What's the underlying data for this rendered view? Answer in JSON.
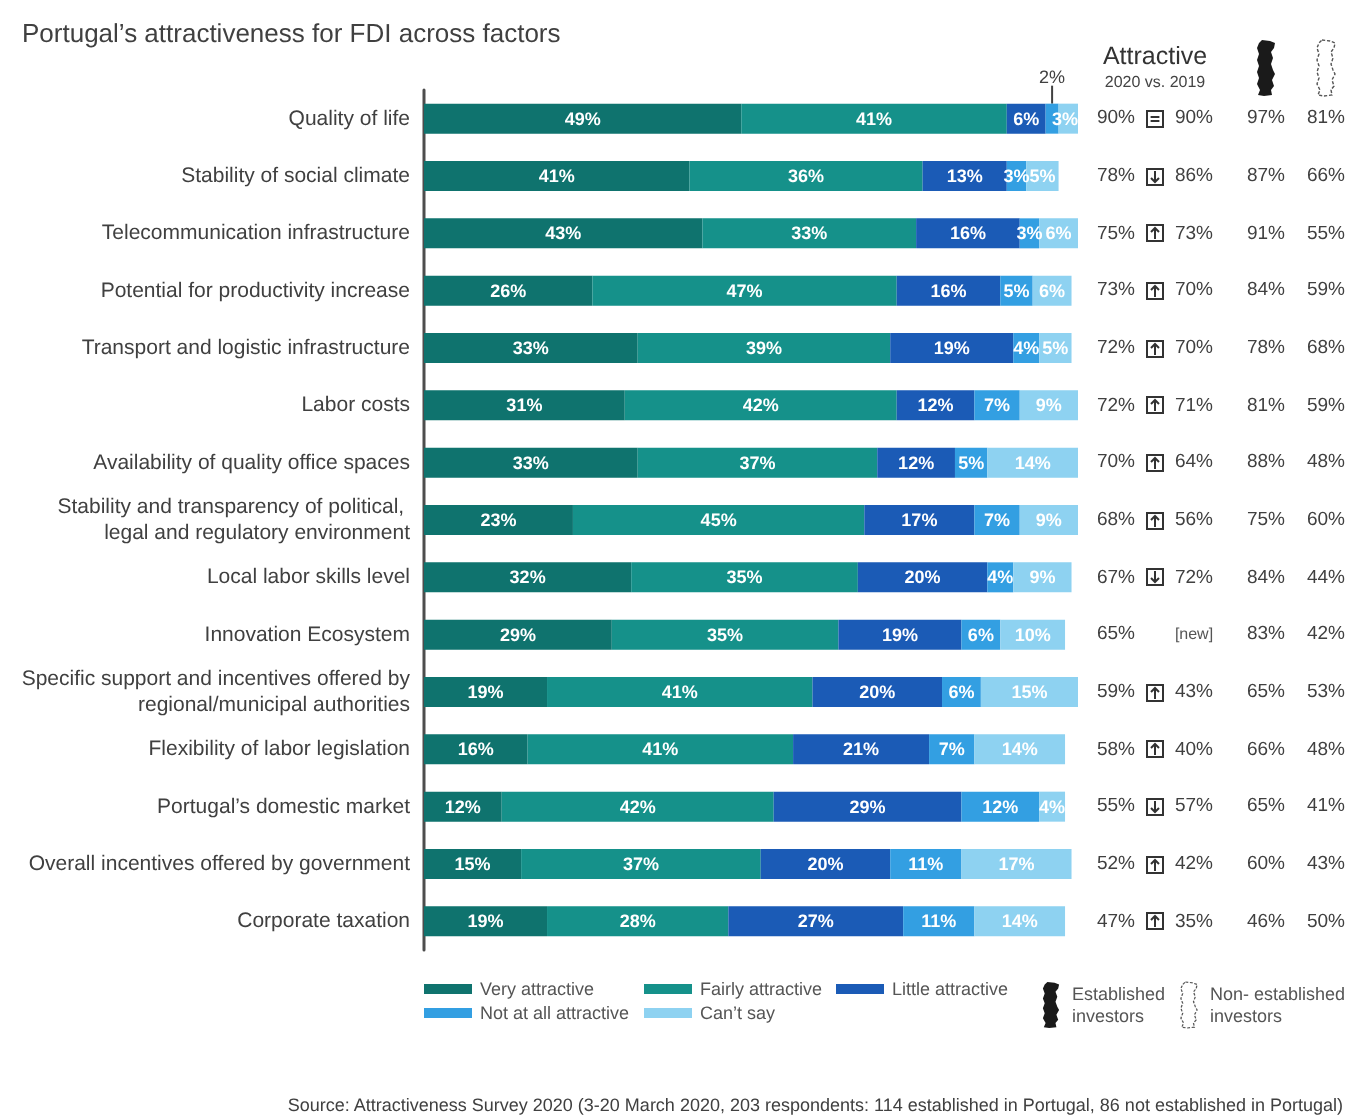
{
  "chart_data": [
    {
      "type": "bar",
      "orientation": "horizontal",
      "stacked": true,
      "title": "Portugal’s attractiveness for FDI across factors",
      "categories": [
        "Quality of life",
        "Stability of social climate",
        "Telecommunication infrastructure",
        "Potential for productivity increase",
        "Transport and logistic infrastructure",
        "Labor costs",
        "Availability of quality office spaces",
        "Stability and transparency of political, legal and regulatory environment",
        "Local labor skills level",
        "Innovation Ecosystem",
        "Specific support and incentives offered by regional/municipal authorities",
        "Flexibility of labor legislation",
        "Portugal’s domestic market",
        "Overall incentives offered by government",
        "Corporate taxation"
      ],
      "series": [
        {
          "name": "Very attractive",
          "color": "#0f736e",
          "values": [
            49,
            41,
            43,
            26,
            33,
            31,
            33,
            23,
            32,
            29,
            19,
            16,
            12,
            15,
            19
          ],
          "value_labels": [
            "49%",
            "41%",
            "43%",
            "26%",
            "33%",
            "31%",
            "33%",
            "23%",
            "32%",
            "29%",
            "19%",
            "16%",
            "12%",
            "15%",
            "19%"
          ]
        },
        {
          "name": "Fairly attractive",
          "color": "#15918a",
          "values": [
            41,
            36,
            33,
            47,
            39,
            42,
            37,
            45,
            35,
            35,
            41,
            41,
            42,
            37,
            28
          ],
          "value_labels": [
            "41%",
            "36%",
            "33%",
            "47%",
            "39%",
            "42%",
            "37%",
            "45%",
            "35%",
            "35%",
            "41%",
            "41%",
            "42%",
            "37%",
            "28%"
          ]
        },
        {
          "name": "Little attractive",
          "color": "#1b5bb6",
          "values": [
            6,
            13,
            16,
            16,
            19,
            12,
            12,
            17,
            20,
            19,
            20,
            21,
            29,
            20,
            27
          ],
          "value_labels": [
            "6%",
            "13%",
            "16%",
            "16%",
            "19%",
            "12%",
            "12%",
            "17%",
            "20%",
            "19%",
            "20%",
            "21%",
            "29%",
            "20%",
            "27%"
          ]
        },
        {
          "name": "Not at all attractive",
          "color": "#339fe2",
          "values": [
            2,
            3,
            3,
            5,
            4,
            7,
            5,
            7,
            4,
            6,
            6,
            7,
            12,
            11,
            11
          ],
          "value_labels": [
            "2%",
            "3%",
            "3%",
            "5%",
            "4%",
            "7%",
            "5%",
            "7%",
            "4%",
            "6%",
            "6%",
            "7%",
            "12%",
            "11%",
            "11%"
          ]
        },
        {
          "name": "Can’t say",
          "color": "#8ed2f1",
          "values": [
            3,
            5,
            6,
            6,
            5,
            9,
            14,
            9,
            9,
            10,
            15,
            14,
            4,
            17,
            14
          ],
          "value_labels": [
            "3%",
            "5%",
            "6%",
            "6%",
            "5%",
            "9%",
            "14%",
            "9%",
            "9%",
            "10%",
            "15%",
            "14%",
            "4%",
            "17%",
            "14%"
          ]
        }
      ],
      "legend": "bottom",
      "annotations": [
        "Source: Attractiveness Survey 2020 (3-20 March 2020, 203 respondents: 114 established in Portugal, 86 not established in Portugal)"
      ]
    },
    {
      "type": "other",
      "title": "Attractive",
      "subtitle": "2020 vs. 2019",
      "annotations": [
        "90%",
        "90%",
        "97%",
        "81%",
        "78%",
        "86%",
        "87%",
        "66%",
        "75%",
        "73%",
        "91%",
        "55%",
        "73%",
        "70%",
        "84%",
        "59%",
        "72%",
        "70%",
        "78%",
        "68%",
        "72%",
        "71%",
        "81%",
        "59%",
        "70%",
        "64%",
        "88%",
        "48%",
        "68%",
        "56%",
        "75%",
        "60%",
        "67%",
        "72%",
        "84%",
        "44%",
        "65%",
        "[new]",
        "83%",
        "42%",
        "59%",
        "43%",
        "65%",
        "53%",
        "58%",
        "40%",
        "66%",
        "48%",
        "55%",
        "57%",
        "65%",
        "41%",
        "52%",
        "42%",
        "60%",
        "43%",
        "47%",
        "35%",
        "46%",
        "50%",
        "Established investors",
        "Non- established investors"
      ]
    }
  ]
}
